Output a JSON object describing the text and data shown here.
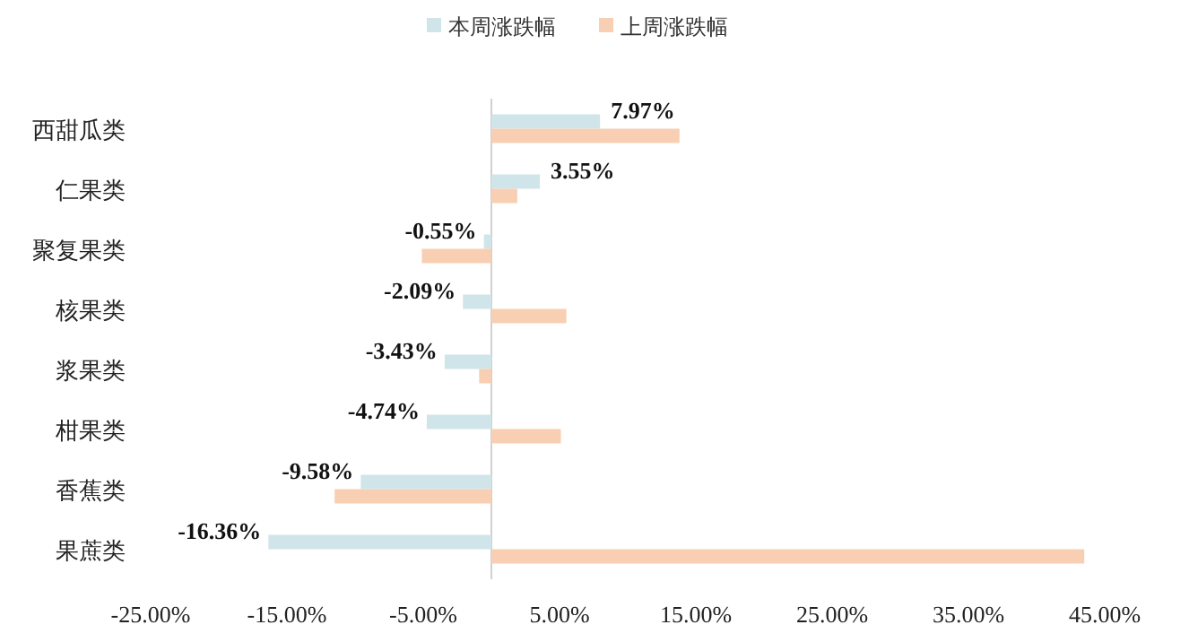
{
  "chart_data": {
    "type": "bar",
    "orientation": "horizontal",
    "legend": "top",
    "categories": [
      "西甜瓜类",
      "仁果类",
      "聚复果类",
      "核果类",
      "浆果类",
      "柑果类",
      "香蕉类",
      "果蔗类"
    ],
    "series": [
      {
        "name": "本周涨跌幅",
        "color": "#cfe5ea",
        "values": [
          7.97,
          3.55,
          -0.55,
          -2.09,
          -3.43,
          -4.74,
          -9.58,
          -16.36
        ],
        "value_labels": [
          "7.97%",
          "3.55%",
          "-0.55%",
          "-2.09%",
          "-3.43%",
          "-4.74%",
          "-9.58%",
          "-16.36%"
        ]
      },
      {
        "name": "上周涨跌幅",
        "color": "#f8cfb2",
        "values": [
          13.8,
          1.9,
          -5.1,
          5.5,
          -0.9,
          5.1,
          -11.5,
          43.5
        ]
      }
    ],
    "xlim": [
      -25,
      45
    ],
    "xticks": [
      {
        "value": -25,
        "label": "-25.00%"
      },
      {
        "value": -15,
        "label": "-15.00%"
      },
      {
        "value": -5,
        "label": "-5.00%"
      },
      {
        "value": 5,
        "label": "5.00%"
      },
      {
        "value": 15,
        "label": "15.00%"
      },
      {
        "value": 25,
        "label": "25.00%"
      },
      {
        "value": 35,
        "label": "35.00%"
      },
      {
        "value": 45,
        "label": "45.00%"
      }
    ]
  }
}
